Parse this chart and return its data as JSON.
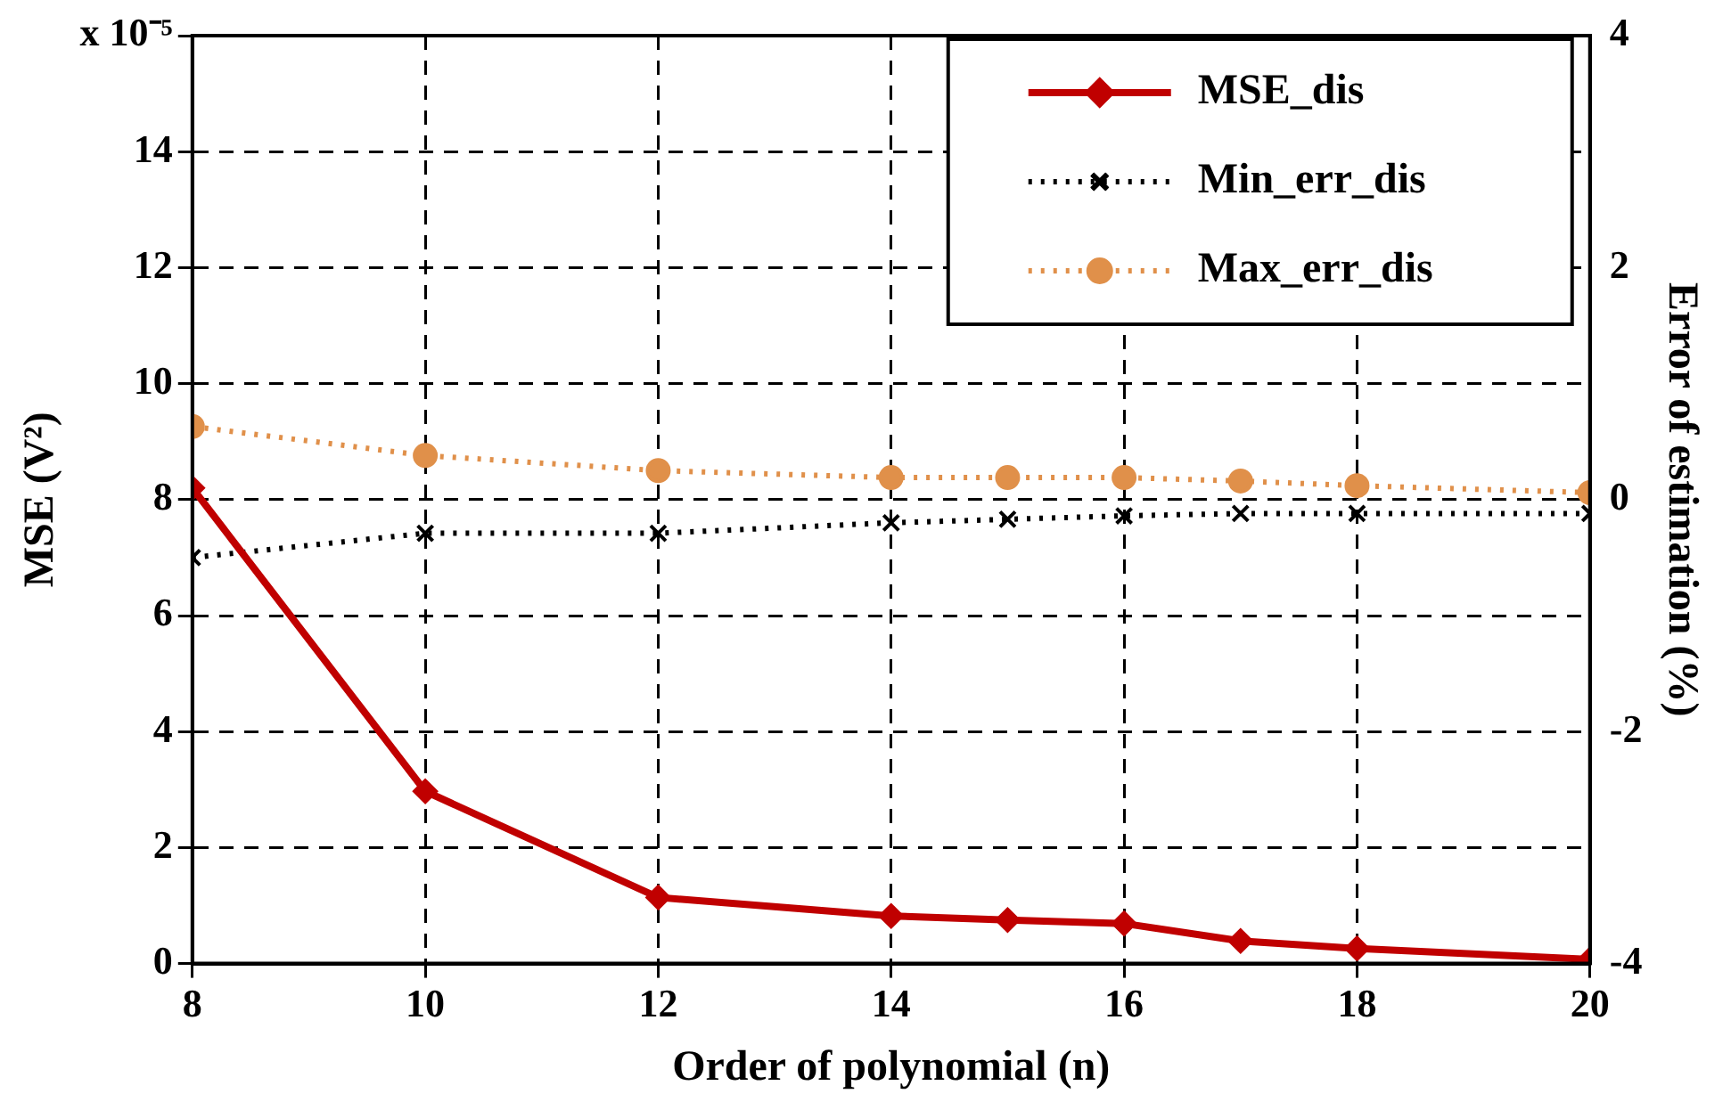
{
  "chart_data": {
    "type": "line",
    "xlabel": "Order of polynomial (n)",
    "ylabel": "MSE (V²)",
    "y2label": "Error of estimation (%)",
    "xlim": [
      8,
      20
    ],
    "xticks": [
      8,
      10,
      12,
      14,
      16,
      18,
      20
    ],
    "ylim": [
      0,
      16
    ],
    "yticks": [
      0,
      2,
      4,
      6,
      8,
      10,
      12,
      14,
      {
        "value": 16,
        "label": "x 10⁻⁵"
      }
    ],
    "y2lim": [
      -4,
      4
    ],
    "y2ticks": [
      -4,
      -2,
      0,
      2,
      4
    ],
    "grid": true,
    "legend": "top right",
    "x": [
      8,
      10,
      12,
      14,
      15,
      16,
      17,
      18,
      20
    ],
    "series": [
      {
        "name": "MSE_dis",
        "color": "#c00000",
        "marker": "diamond",
        "line_style": "solid",
        "values": [
          8.2,
          2.97,
          1.14,
          0.82,
          0.75,
          0.69,
          0.39,
          0.26,
          0.07
        ]
      },
      {
        "name": "Min_err_dis",
        "color": "#000000",
        "marker": "cross",
        "line_style": "dotted",
        "axis": "y2",
        "values": [
          -0.5,
          -0.29,
          -0.29,
          -0.2,
          -0.17,
          -0.14,
          -0.12,
          -0.12,
          -0.12
        ]
      },
      {
        "name": "Max_err_dis",
        "color": "#e0904a",
        "marker": "circle",
        "line_style": "dotted",
        "axis": "y2",
        "values": [
          0.63,
          0.38,
          0.25,
          0.19,
          0.19,
          0.19,
          0.16,
          0.12,
          0.06
        ]
      }
    ]
  }
}
